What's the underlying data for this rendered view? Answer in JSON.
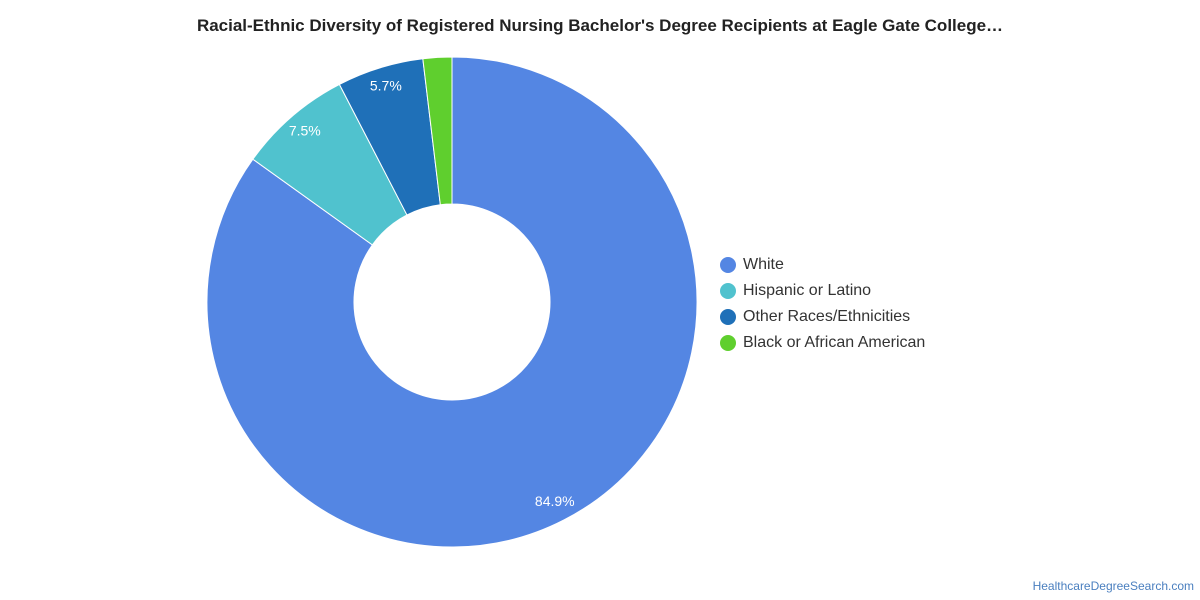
{
  "chart_data": {
    "type": "pie",
    "title": "Racial-Ethnic Diversity of Registered Nursing Bachelor's Degree Recipients at Eagle Gate College…",
    "labels": [
      "White",
      "Hispanic or Latino",
      "Other Races/Ethnicities",
      "Black or African American"
    ],
    "values": [
      84.9,
      7.5,
      5.7,
      1.9
    ],
    "data_labels": [
      "84.9%",
      "7.5%",
      "5.7%",
      ""
    ],
    "colors": [
      "#5486e3",
      "#50c2ce",
      "#1f70b8",
      "#5fcf2e"
    ],
    "donut": true,
    "legend_position": "right"
  },
  "source": "HealthcareDegreeSearch.com"
}
